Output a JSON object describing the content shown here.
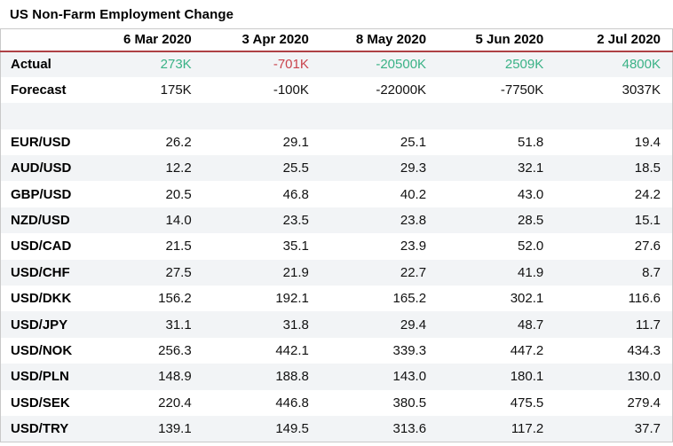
{
  "title": "US Non-Farm Employment Change",
  "chart_data": {
    "type": "table",
    "title": "US Non-Farm Employment Change",
    "columns": [
      "6 Mar 2020",
      "3 Apr 2020",
      "8 May 2020",
      "5 Jun 2020",
      "2 Jul 2020"
    ],
    "rows": [
      {
        "label": "Actual",
        "values": [
          "273K",
          "-701K",
          "-20500K",
          "2509K",
          "4800K"
        ],
        "value_colors": [
          "green",
          "red",
          "green",
          "green",
          "green"
        ],
        "shaded": true
      },
      {
        "label": "Forecast",
        "values": [
          "175K",
          "-100K",
          "-22000K",
          "-7750K",
          "3037K"
        ],
        "shaded": false
      },
      {
        "label": "",
        "values": [
          "",
          "",
          "",
          "",
          ""
        ],
        "spacer": true,
        "shaded": true
      },
      {
        "label": "EUR/USD",
        "values": [
          "26.2",
          "29.1",
          "25.1",
          "51.8",
          "19.4"
        ],
        "shaded": false
      },
      {
        "label": "AUD/USD",
        "values": [
          "12.2",
          "25.5",
          "29.3",
          "32.1",
          "18.5"
        ],
        "shaded": true
      },
      {
        "label": "GBP/USD",
        "values": [
          "20.5",
          "46.8",
          "40.2",
          "43.0",
          "24.2"
        ],
        "shaded": false
      },
      {
        "label": "NZD/USD",
        "values": [
          "14.0",
          "23.5",
          "23.8",
          "28.5",
          "15.1"
        ],
        "shaded": true
      },
      {
        "label": "USD/CAD",
        "values": [
          "21.5",
          "35.1",
          "23.9",
          "52.0",
          "27.6"
        ],
        "shaded": false
      },
      {
        "label": "USD/CHF",
        "values": [
          "27.5",
          "21.9",
          "22.7",
          "41.9",
          "8.7"
        ],
        "shaded": true
      },
      {
        "label": "USD/DKK",
        "values": [
          "156.2",
          "192.1",
          "165.2",
          "302.1",
          "116.6"
        ],
        "shaded": false
      },
      {
        "label": "USD/JPY",
        "values": [
          "31.1",
          "31.8",
          "29.4",
          "48.7",
          "11.7"
        ],
        "shaded": true
      },
      {
        "label": "USD/NOK",
        "values": [
          "256.3",
          "442.1",
          "339.3",
          "447.2",
          "434.3"
        ],
        "shaded": false
      },
      {
        "label": "USD/PLN",
        "values": [
          "148.9",
          "188.8",
          "143.0",
          "180.1",
          "130.0"
        ],
        "shaded": true
      },
      {
        "label": "USD/SEK",
        "values": [
          "220.4",
          "446.8",
          "380.5",
          "475.5",
          "279.4"
        ],
        "shaded": false
      },
      {
        "label": "USD/TRY",
        "values": [
          "139.1",
          "149.5",
          "313.6",
          "117.2",
          "37.7"
        ],
        "shaded": true
      }
    ]
  },
  "colors": {
    "positive_green": "#3ab286",
    "negative_red": "#c9434c",
    "header_rule_red": "#ae4045",
    "shaded_row_bg": "#f2f4f6",
    "table_border": "#c9c9c9"
  }
}
